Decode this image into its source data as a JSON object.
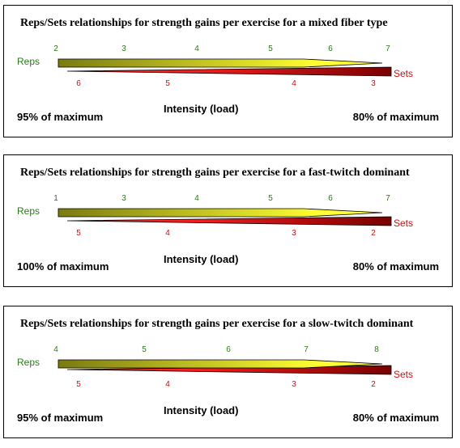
{
  "panels": [
    {
      "title": "Reps/Sets relationships for strength gains per exercise for a mixed fiber type",
      "reps_label": "Reps",
      "sets_label": "Sets",
      "reps_ticks": [
        "2",
        "3",
        "4",
        "5",
        "6",
        "7"
      ],
      "sets_ticks": [
        "6",
        "5",
        "4",
        "3"
      ],
      "intensity_label": "Intensity (load)",
      "left_percent": "95% of maximum",
      "right_percent": "80% of maximum"
    },
    {
      "title": "Reps/Sets relationships for strength gains per exercise for a fast-twitch dominant",
      "reps_label": "Reps",
      "sets_label": "Sets",
      "reps_ticks": [
        "1",
        "3",
        "4",
        "5",
        "6",
        "7"
      ],
      "sets_ticks": [
        "5",
        "4",
        "3",
        "2"
      ],
      "intensity_label": "Intensity (load)",
      "left_percent": "100% of maximum",
      "right_percent": "80% of maximum"
    },
    {
      "title": "Reps/Sets relationships for strength gains per exercise for a slow-twitch dominant",
      "reps_label": "Reps",
      "sets_label": "Sets",
      "reps_ticks": [
        "4",
        "5",
        "6",
        "7",
        "8"
      ],
      "sets_ticks": [
        "5",
        "4",
        "3",
        "2"
      ],
      "intensity_label": "Intensity (load)",
      "left_percent": "95% of maximum",
      "right_percent": "80% of maximum"
    }
  ],
  "colors": {
    "reps_dark": "#7a7a10",
    "reps_light": "#ffff33",
    "sets_light": "#ff2020",
    "sets_dark": "#7a0000",
    "reps_text": "#2a7a1a",
    "sets_text": "#cc1010"
  }
}
